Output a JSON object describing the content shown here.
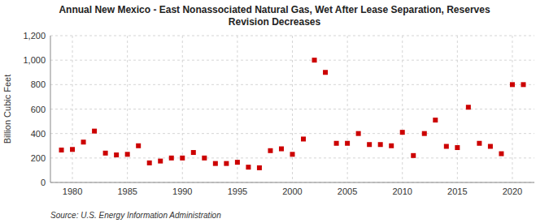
{
  "chart_data": {
    "type": "scatter",
    "title": "Annual New Mexico - East Nonassociated Natural Gas, Wet After Lease Separation, Reserves\nRevision Decreases",
    "ylabel": "Billion Cubic Feet",
    "annotations": [
      "Source: U.S. Energy Information Administration"
    ],
    "x": [
      1979,
      1980,
      1981,
      1982,
      1983,
      1984,
      1985,
      1986,
      1987,
      1988,
      1989,
      1990,
      1991,
      1992,
      1993,
      1994,
      1995,
      1996,
      1997,
      1998,
      1999,
      2000,
      2001,
      2002,
      2003,
      2004,
      2005,
      2006,
      2007,
      2008,
      2009,
      2010,
      2011,
      2012,
      2013,
      2014,
      2015,
      2016,
      2017,
      2018,
      2019,
      2020,
      2021
    ],
    "values": [
      265,
      270,
      330,
      420,
      240,
      225,
      230,
      300,
      160,
      175,
      200,
      200,
      245,
      200,
      155,
      155,
      165,
      125,
      120,
      260,
      275,
      230,
      355,
      1000,
      900,
      320,
      320,
      400,
      310,
      310,
      300,
      410,
      220,
      400,
      510,
      295,
      285,
      615,
      320,
      295,
      235,
      800,
      800
    ],
    "color": "#cc0000",
    "marker": "square",
    "xlim": [
      1978,
      2022
    ],
    "ylim": [
      0,
      1200
    ],
    "xticks": [
      1980,
      1985,
      1990,
      1995,
      2000,
      2005,
      2010,
      2015,
      2020
    ],
    "yticks": [
      0,
      200,
      400,
      600,
      800,
      {
        "value": 1000,
        "label": "1,000"
      },
      {
        "value": 1200,
        "label": "1,200"
      }
    ],
    "grid": true
  }
}
